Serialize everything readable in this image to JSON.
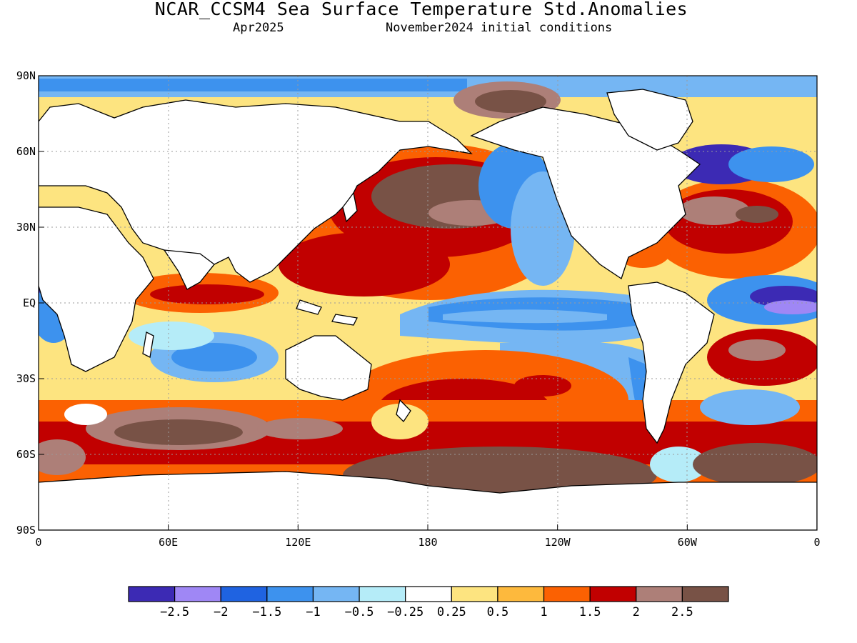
{
  "header": {
    "title": "NCAR_CCSM4 Sea Surface Temperature Std.Anomalies",
    "valid_month": "Apr2025",
    "init_conditions": "November2024 initial conditions"
  },
  "map": {
    "lat_ticks": [
      "90N",
      "60N",
      "30N",
      "EQ",
      "30S",
      "60S",
      "90S"
    ],
    "lon_ticks": [
      "0",
      "60E",
      "120E",
      "180",
      "120W",
      "60W",
      "0"
    ],
    "lat_values": [
      90,
      60,
      30,
      0,
      -30,
      -60,
      -90
    ],
    "lon_values": [
      0,
      60,
      120,
      180,
      240,
      300,
      360
    ],
    "colors": {
      "land": "#ffffff",
      "coast": "#000000",
      "grid": "#9a9a9a"
    },
    "anomaly_regions": [
      {
        "name": "north-atlantic-warm",
        "level": 2.5
      },
      {
        "name": "north-pacific-warm",
        "level": 2.5
      },
      {
        "name": "equatorial-pacific-cool",
        "level": -1
      },
      {
        "name": "southern-ocean-warm",
        "level": 2.5
      },
      {
        "name": "equatorial-atlantic-cool",
        "level": -2.5
      },
      {
        "name": "labrador-sea-cool",
        "level": -2.5
      }
    ]
  },
  "colorbar": {
    "colors": [
      "#3c2ab4",
      "#9f87f5",
      "#1f63e1",
      "#3d92ee",
      "#75b6f3",
      "#b5ecf8",
      "#ffffff",
      "#fde480",
      "#fdb93d",
      "#fb6102",
      "#c10000",
      "#ad7f78",
      "#785246"
    ],
    "labels": [
      "-2.5",
      "-2",
      "-1.5",
      "-1",
      "-0.5",
      "-0.25",
      "0.25",
      "0.5",
      "1",
      "1.5",
      "2",
      "2.5"
    ]
  }
}
